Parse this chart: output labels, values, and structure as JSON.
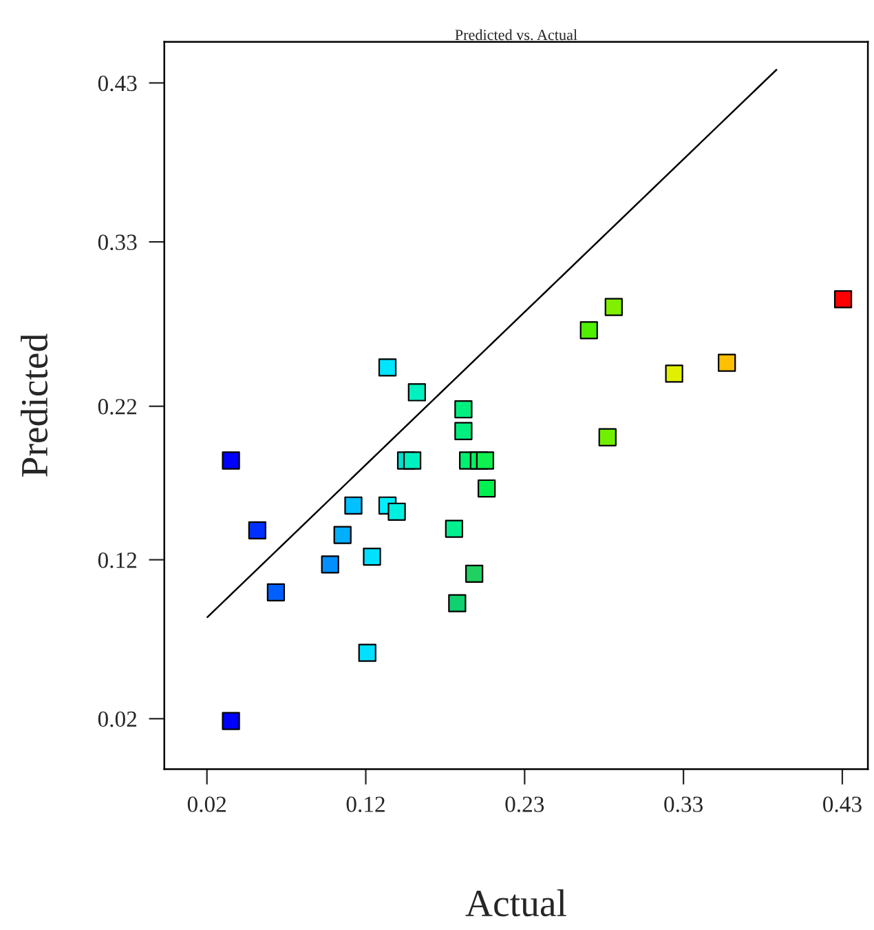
{
  "chart_data": {
    "type": "scatter",
    "title": "Predicted vs. Actual",
    "xlabel": "Actual",
    "ylabel": "Predicted",
    "xlim": [
      -0.005,
      0.449
    ],
    "ylim": [
      -0.01,
      0.459
    ],
    "xticks": [
      {
        "value": 0.0225,
        "label": "0.02"
      },
      {
        "value": 0.125,
        "label": "0.12"
      },
      {
        "value": 0.2275,
        "label": "0.23"
      },
      {
        "value": 0.33,
        "label": "0.33"
      },
      {
        "value": 0.4325,
        "label": "0.43"
      }
    ],
    "yticks": [
      {
        "value": 0.0225,
        "label": "0.02"
      },
      {
        "value": 0.125,
        "label": "0.12"
      },
      {
        "value": 0.224,
        "label": "0.22"
      },
      {
        "value": 0.33,
        "label": "0.33"
      },
      {
        "value": 0.4325,
        "label": "0.43"
      }
    ],
    "grid": false,
    "legend": false,
    "series": [
      {
        "marker": "square",
        "x": [
          0.139,
          0.158,
          0.188,
          0.269,
          0.285,
          0.324,
          0.358,
          0.433,
          0.188,
          0.281,
          0.038,
          0.151,
          0.155,
          0.191,
          0.198,
          0.202,
          0.203,
          0.117,
          0.139,
          0.145,
          0.055,
          0.11,
          0.182,
          0.129,
          0.102,
          0.195,
          0.067,
          0.184,
          0.126,
          0.038
        ],
        "values": [
          0.249,
          0.233,
          0.222,
          0.273,
          0.288,
          0.245,
          0.252,
          0.293,
          0.208,
          0.204,
          0.189,
          0.189,
          0.189,
          0.189,
          0.189,
          0.189,
          0.171,
          0.16,
          0.16,
          0.156,
          0.144,
          0.141,
          0.145,
          0.127,
          0.122,
          0.116,
          0.104,
          0.097,
          0.065,
          0.021
        ],
        "colors": [
          "#00e5ff",
          "#00f0c0",
          "#00f080",
          "#50f000",
          "#80f000",
          "#e0f000",
          "#ffc000",
          "#ff0000",
          "#00f080",
          "#70f000",
          "#0000ff",
          "#00e0d0",
          "#00f0c0",
          "#00f070",
          "#00f060",
          "#10f050",
          "#00f050",
          "#00c0ff",
          "#00f0ff",
          "#00f0e0",
          "#0030ff",
          "#00b0ff",
          "#00f090",
          "#00e0ff",
          "#0090ff",
          "#20d060",
          "#0060ff",
          "#10d070",
          "#00e0ff",
          "#0000ff"
        ]
      },
      {
        "type": "line",
        "x": [
          0.0228,
          0.39
        ],
        "values": [
          0.088,
          0.441
        ],
        "color": "#000000",
        "line_style": "solid"
      }
    ]
  }
}
